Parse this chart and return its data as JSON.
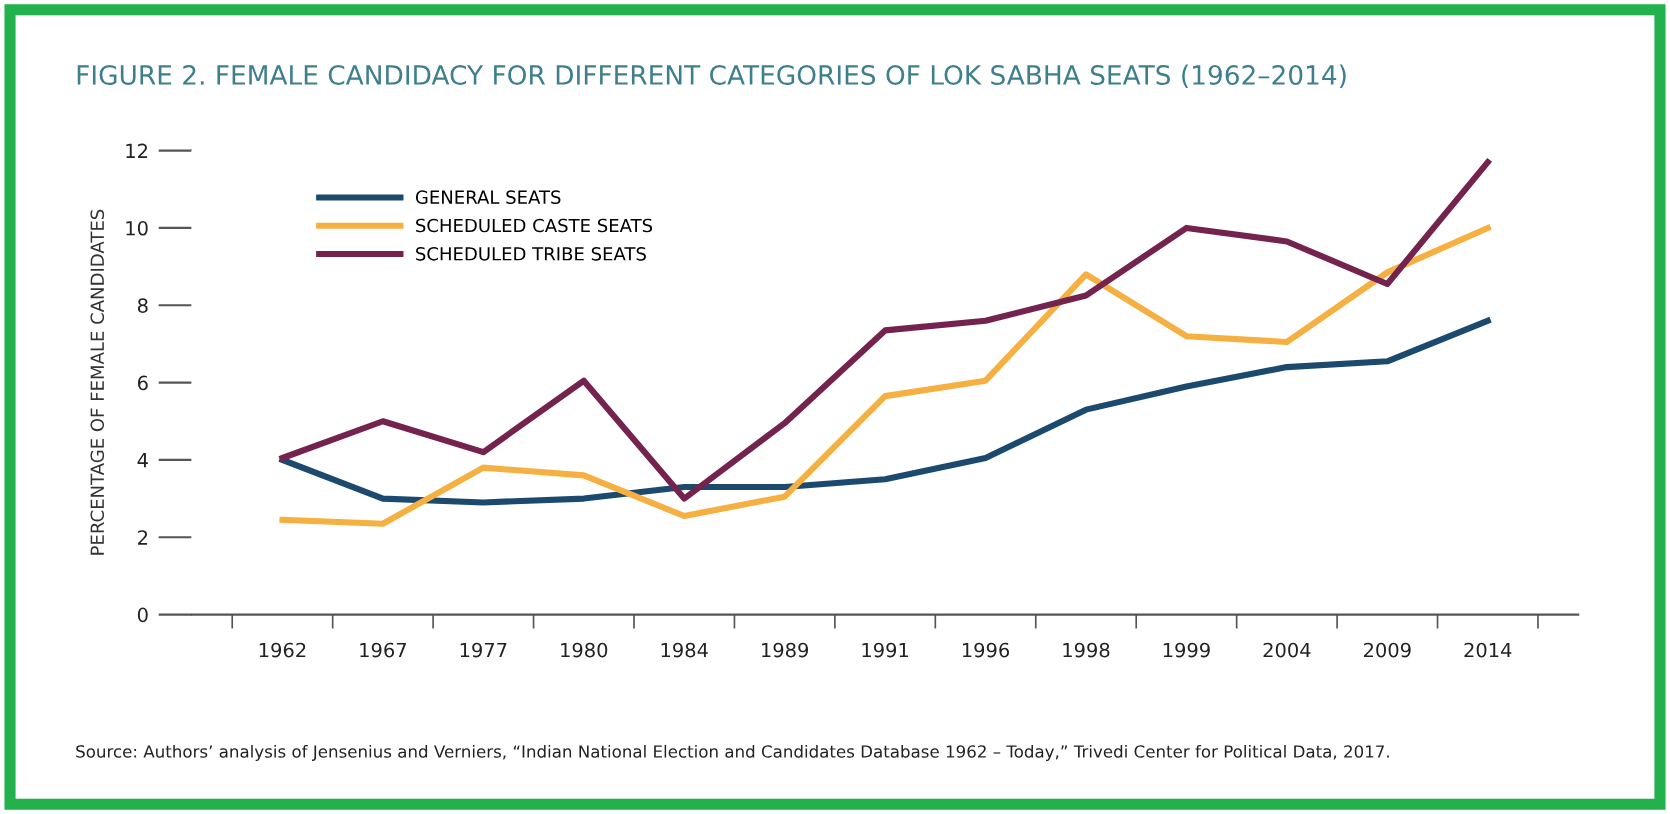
{
  "chart_data": {
    "type": "line",
    "title": "FIGURE 2. FEMALE CANDIDACY FOR DIFFERENT CATEGORIES OF LOK SABHA SEATS (1962–2014)",
    "ylabel": "PERCENTAGE OF FEMALE CANDIDATES",
    "categories": [
      "1962",
      "1967",
      "1977",
      "1980",
      "1984",
      "1989",
      "1991",
      "1996",
      "1998",
      "1999",
      "2004",
      "2009",
      "2014"
    ],
    "series": [
      {
        "name": "GENERAL SEATS",
        "color": "#1c4a6e",
        "values": [
          4.0,
          3.0,
          2.9,
          3.0,
          3.3,
          3.3,
          3.5,
          4.05,
          5.3,
          5.9,
          6.4,
          6.55,
          7.6
        ]
      },
      {
        "name": "SCHEDULED CASTE SEATS",
        "color": "#f5b041",
        "values": [
          2.45,
          2.35,
          3.8,
          3.6,
          2.55,
          3.05,
          5.65,
          6.05,
          8.8,
          7.2,
          7.05,
          8.85,
          10.0
        ]
      },
      {
        "name": "SCHEDULED TRIBE SEATS",
        "color": "#74234f",
        "values": [
          4.05,
          5.0,
          4.2,
          6.05,
          3.0,
          4.95,
          7.35,
          7.6,
          8.25,
          10.0,
          9.65,
          8.55,
          11.7
        ]
      }
    ],
    "ylim": [
      0,
      12
    ],
    "yticks": [
      0,
      2,
      4,
      6,
      8,
      10,
      12
    ],
    "grid": false,
    "legend": "top left",
    "marker": "none",
    "line_style": "solid",
    "annotations": [
      "Source: Authors’ analysis of Jensenius and Verniers, “Indian National Election and Candidates Database 1962 – Today,” Trivedi Center for Political Data, 2017."
    ]
  }
}
